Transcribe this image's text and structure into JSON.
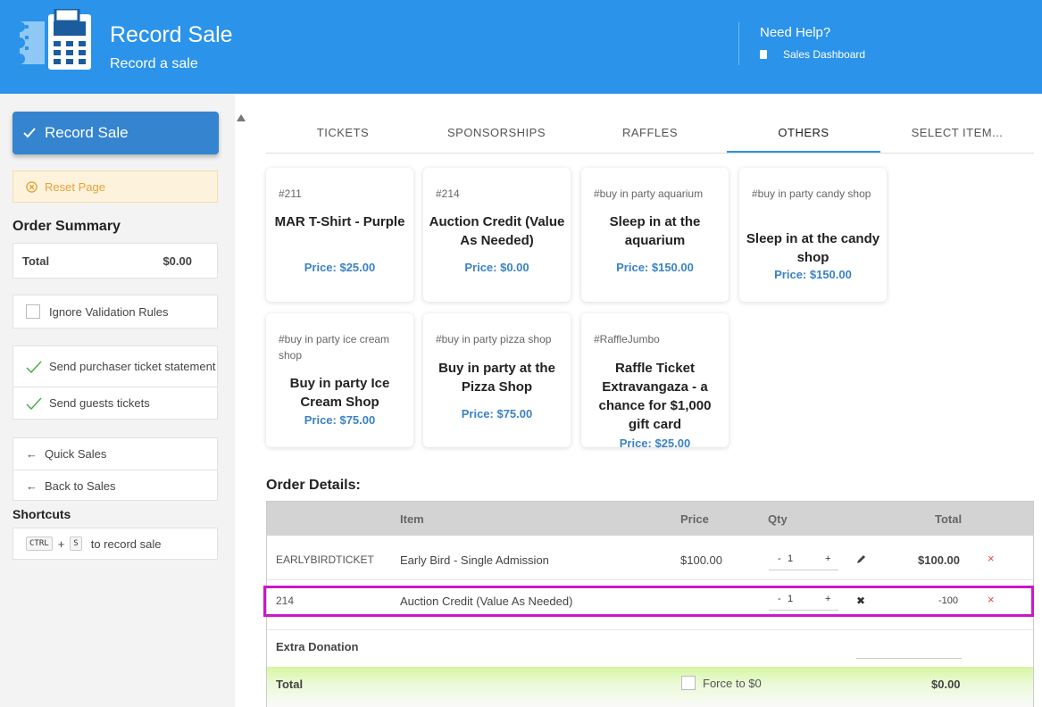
{
  "header": {
    "title": "Record Sale",
    "subtitle": "Record a sale",
    "help": "Need Help?",
    "dashboard_link": "Sales Dashboard"
  },
  "sidebar": {
    "record_button": "Record Sale",
    "reset": "Reset Page",
    "order_summary": "Order Summary",
    "total_label": "Total",
    "total_value": "$0.00",
    "ignore_validation": "Ignore Validation Rules",
    "send_statement": "Send purchaser ticket statement",
    "send_guests": "Send guests tickets",
    "quick_sales": "Quick Sales",
    "back_to_sales": "Back to Sales",
    "shortcuts_title": "Shortcuts",
    "shortcut_key1": "CTRL",
    "shortcut_plus": "+",
    "shortcut_key2": "S",
    "shortcut_desc": "to record sale"
  },
  "tabs": [
    "TICKETS",
    "SPONSORSHIPS",
    "RAFFLES",
    "OTHERS",
    "SELECT ITEM..."
  ],
  "active_tab": "OTHERS",
  "cards": [
    {
      "code": "#211",
      "name": "MAR T-Shirt - Purple",
      "price": "Price: $25.00"
    },
    {
      "code": "#214",
      "name": "Auction Credit (Value As Needed)",
      "price": "Price: $0.00"
    },
    {
      "code": "#buy in party aquarium",
      "name": "Sleep in at the aquarium",
      "price": "Price: $150.00"
    },
    {
      "code": "#buy in party candy shop",
      "name": "Sleep in at the candy shop",
      "price": "Price: $150.00"
    },
    {
      "code": "#buy in party ice cream shop",
      "name": "Buy in party Ice Cream Shop",
      "price": "Price: $75.00"
    },
    {
      "code": "#buy in party pizza shop",
      "name": "Buy in party at the Pizza Shop",
      "price": "Price: $75.00"
    },
    {
      "code": "#RaffleJumbo",
      "name": "Raffle Ticket Extravangaza - a chance for $1,000 gift card",
      "price": "Price: $25.00"
    }
  ],
  "order": {
    "title": "Order Details:",
    "headers": {
      "item": "Item",
      "price": "Price",
      "qty": "Qty",
      "total": "Total"
    },
    "rows": [
      {
        "code": "EARLYBIRDTICKET",
        "item": "Early Bird - Single Admission",
        "price": "$100.00",
        "minus": "-",
        "qty": "1",
        "plus": "+",
        "total": "$100.00"
      },
      {
        "code": "214",
        "item": "Auction Credit (Value As Needed)",
        "price": "",
        "minus": "-",
        "qty": "1",
        "plus": "+",
        "total": "-100"
      }
    ],
    "extra_donation": "Extra Donation",
    "total_label": "Total",
    "force_label": "Force to $0",
    "total_value": "$0.00",
    "remove_glyph": "×",
    "cancel_glyph": "✖"
  },
  "colors": {
    "header": "#2b93ea",
    "accent": "#3484d0",
    "highlight": "#c918c9",
    "price": "#3a82c6",
    "total_bar": "#d6f7a0"
  }
}
